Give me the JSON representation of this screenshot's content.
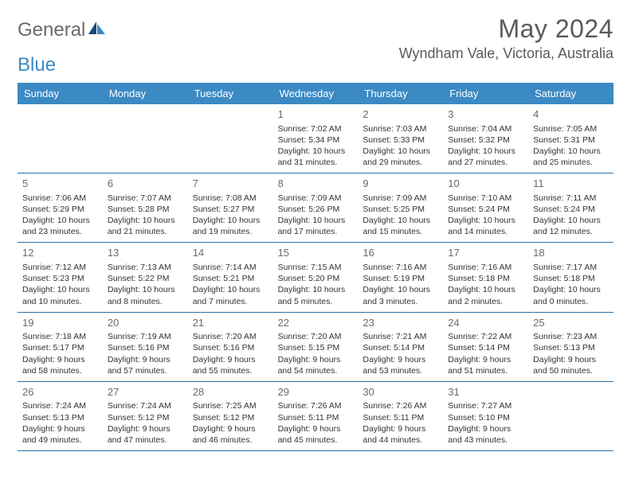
{
  "brand": {
    "word1": "General",
    "word2": "Blue"
  },
  "title": "May 2024",
  "location": "Wyndham Vale, Victoria, Australia",
  "colors": {
    "header_bg": "#3b8ac4",
    "header_text": "#ffffff",
    "rule": "#2f6fa3",
    "body_text": "#333333",
    "muted": "#6b6b6b",
    "page_bg": "#ffffff"
  },
  "day_labels": [
    "Sunday",
    "Monday",
    "Tuesday",
    "Wednesday",
    "Thursday",
    "Friday",
    "Saturday"
  ],
  "weeks": [
    [
      null,
      null,
      null,
      {
        "n": "1",
        "sr": "Sunrise: 7:02 AM",
        "ss": "Sunset: 5:34 PM",
        "d1": "Daylight: 10 hours",
        "d2": "and 31 minutes."
      },
      {
        "n": "2",
        "sr": "Sunrise: 7:03 AM",
        "ss": "Sunset: 5:33 PM",
        "d1": "Daylight: 10 hours",
        "d2": "and 29 minutes."
      },
      {
        "n": "3",
        "sr": "Sunrise: 7:04 AM",
        "ss": "Sunset: 5:32 PM",
        "d1": "Daylight: 10 hours",
        "d2": "and 27 minutes."
      },
      {
        "n": "4",
        "sr": "Sunrise: 7:05 AM",
        "ss": "Sunset: 5:31 PM",
        "d1": "Daylight: 10 hours",
        "d2": "and 25 minutes."
      }
    ],
    [
      {
        "n": "5",
        "sr": "Sunrise: 7:06 AM",
        "ss": "Sunset: 5:29 PM",
        "d1": "Daylight: 10 hours",
        "d2": "and 23 minutes."
      },
      {
        "n": "6",
        "sr": "Sunrise: 7:07 AM",
        "ss": "Sunset: 5:28 PM",
        "d1": "Daylight: 10 hours",
        "d2": "and 21 minutes."
      },
      {
        "n": "7",
        "sr": "Sunrise: 7:08 AM",
        "ss": "Sunset: 5:27 PM",
        "d1": "Daylight: 10 hours",
        "d2": "and 19 minutes."
      },
      {
        "n": "8",
        "sr": "Sunrise: 7:09 AM",
        "ss": "Sunset: 5:26 PM",
        "d1": "Daylight: 10 hours",
        "d2": "and 17 minutes."
      },
      {
        "n": "9",
        "sr": "Sunrise: 7:09 AM",
        "ss": "Sunset: 5:25 PM",
        "d1": "Daylight: 10 hours",
        "d2": "and 15 minutes."
      },
      {
        "n": "10",
        "sr": "Sunrise: 7:10 AM",
        "ss": "Sunset: 5:24 PM",
        "d1": "Daylight: 10 hours",
        "d2": "and 14 minutes."
      },
      {
        "n": "11",
        "sr": "Sunrise: 7:11 AM",
        "ss": "Sunset: 5:24 PM",
        "d1": "Daylight: 10 hours",
        "d2": "and 12 minutes."
      }
    ],
    [
      {
        "n": "12",
        "sr": "Sunrise: 7:12 AM",
        "ss": "Sunset: 5:23 PM",
        "d1": "Daylight: 10 hours",
        "d2": "and 10 minutes."
      },
      {
        "n": "13",
        "sr": "Sunrise: 7:13 AM",
        "ss": "Sunset: 5:22 PM",
        "d1": "Daylight: 10 hours",
        "d2": "and 8 minutes."
      },
      {
        "n": "14",
        "sr": "Sunrise: 7:14 AM",
        "ss": "Sunset: 5:21 PM",
        "d1": "Daylight: 10 hours",
        "d2": "and 7 minutes."
      },
      {
        "n": "15",
        "sr": "Sunrise: 7:15 AM",
        "ss": "Sunset: 5:20 PM",
        "d1": "Daylight: 10 hours",
        "d2": "and 5 minutes."
      },
      {
        "n": "16",
        "sr": "Sunrise: 7:16 AM",
        "ss": "Sunset: 5:19 PM",
        "d1": "Daylight: 10 hours",
        "d2": "and 3 minutes."
      },
      {
        "n": "17",
        "sr": "Sunrise: 7:16 AM",
        "ss": "Sunset: 5:18 PM",
        "d1": "Daylight: 10 hours",
        "d2": "and 2 minutes."
      },
      {
        "n": "18",
        "sr": "Sunrise: 7:17 AM",
        "ss": "Sunset: 5:18 PM",
        "d1": "Daylight: 10 hours",
        "d2": "and 0 minutes."
      }
    ],
    [
      {
        "n": "19",
        "sr": "Sunrise: 7:18 AM",
        "ss": "Sunset: 5:17 PM",
        "d1": "Daylight: 9 hours",
        "d2": "and 58 minutes."
      },
      {
        "n": "20",
        "sr": "Sunrise: 7:19 AM",
        "ss": "Sunset: 5:16 PM",
        "d1": "Daylight: 9 hours",
        "d2": "and 57 minutes."
      },
      {
        "n": "21",
        "sr": "Sunrise: 7:20 AM",
        "ss": "Sunset: 5:16 PM",
        "d1": "Daylight: 9 hours",
        "d2": "and 55 minutes."
      },
      {
        "n": "22",
        "sr": "Sunrise: 7:20 AM",
        "ss": "Sunset: 5:15 PM",
        "d1": "Daylight: 9 hours",
        "d2": "and 54 minutes."
      },
      {
        "n": "23",
        "sr": "Sunrise: 7:21 AM",
        "ss": "Sunset: 5:14 PM",
        "d1": "Daylight: 9 hours",
        "d2": "and 53 minutes."
      },
      {
        "n": "24",
        "sr": "Sunrise: 7:22 AM",
        "ss": "Sunset: 5:14 PM",
        "d1": "Daylight: 9 hours",
        "d2": "and 51 minutes."
      },
      {
        "n": "25",
        "sr": "Sunrise: 7:23 AM",
        "ss": "Sunset: 5:13 PM",
        "d1": "Daylight: 9 hours",
        "d2": "and 50 minutes."
      }
    ],
    [
      {
        "n": "26",
        "sr": "Sunrise: 7:24 AM",
        "ss": "Sunset: 5:13 PM",
        "d1": "Daylight: 9 hours",
        "d2": "and 49 minutes."
      },
      {
        "n": "27",
        "sr": "Sunrise: 7:24 AM",
        "ss": "Sunset: 5:12 PM",
        "d1": "Daylight: 9 hours",
        "d2": "and 47 minutes."
      },
      {
        "n": "28",
        "sr": "Sunrise: 7:25 AM",
        "ss": "Sunset: 5:12 PM",
        "d1": "Daylight: 9 hours",
        "d2": "and 46 minutes."
      },
      {
        "n": "29",
        "sr": "Sunrise: 7:26 AM",
        "ss": "Sunset: 5:11 PM",
        "d1": "Daylight: 9 hours",
        "d2": "and 45 minutes."
      },
      {
        "n": "30",
        "sr": "Sunrise: 7:26 AM",
        "ss": "Sunset: 5:11 PM",
        "d1": "Daylight: 9 hours",
        "d2": "and 44 minutes."
      },
      {
        "n": "31",
        "sr": "Sunrise: 7:27 AM",
        "ss": "Sunset: 5:10 PM",
        "d1": "Daylight: 9 hours",
        "d2": "and 43 minutes."
      },
      null
    ]
  ]
}
